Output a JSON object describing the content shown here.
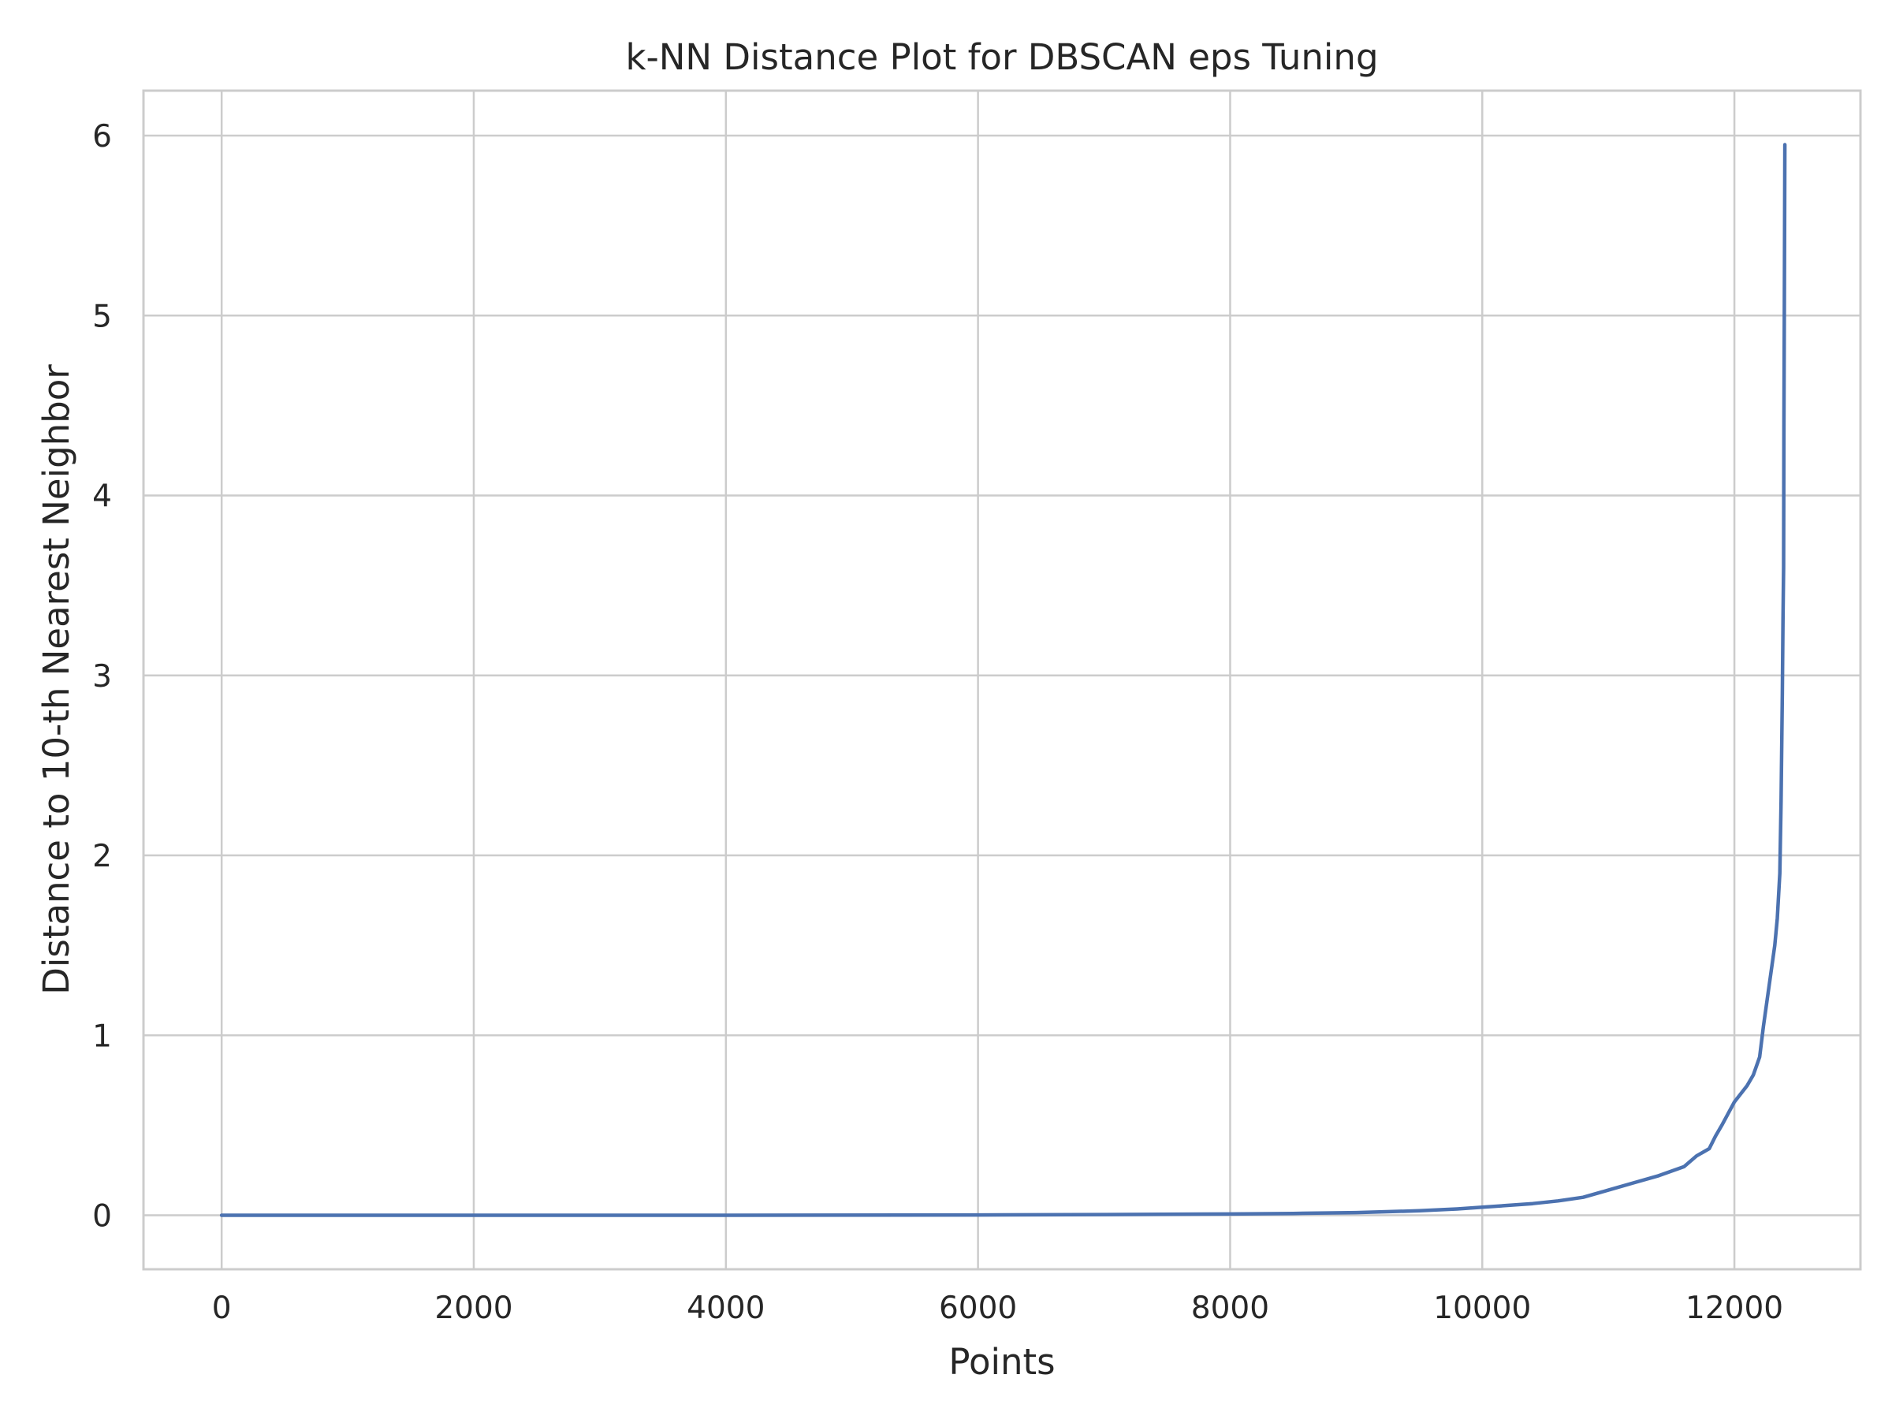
{
  "chart_data": {
    "type": "line",
    "title": "k-NN Distance Plot for DBSCAN eps Tuning",
    "xlabel": "Points",
    "ylabel": "Distance to 10-th Nearest Neighbor",
    "xlim": [
      -620,
      13000
    ],
    "ylim": [
      -0.3,
      6.25
    ],
    "x_ticks": [
      0,
      2000,
      4000,
      6000,
      8000,
      10000,
      12000
    ],
    "x_tick_labels": [
      "0",
      "2000",
      "4000",
      "6000",
      "8000",
      "10000",
      "12000"
    ],
    "y_ticks": [
      0,
      1,
      2,
      3,
      4,
      5,
      6
    ],
    "y_tick_labels": [
      "0",
      "1",
      "2",
      "3",
      "4",
      "5",
      "6"
    ],
    "grid": true,
    "series": [
      {
        "color": "#4c72b0",
        "x": [
          0,
          2000,
          4000,
          6000,
          7000,
          8000,
          8500,
          9000,
          9500,
          9800,
          10000,
          10200,
          10400,
          10600,
          10800,
          11000,
          11200,
          11400,
          11600,
          11700,
          11800,
          11850,
          11900,
          12000,
          12100,
          12150,
          12200,
          12230,
          12260,
          12290,
          12320,
          12340,
          12360,
          12370,
          12380,
          12385,
          12390,
          12393,
          12396,
          12400
        ],
        "y": [
          0.0,
          0.0,
          0.0,
          0.002,
          0.004,
          0.007,
          0.01,
          0.015,
          0.025,
          0.035,
          0.045,
          0.055,
          0.065,
          0.08,
          0.1,
          0.14,
          0.18,
          0.22,
          0.27,
          0.33,
          0.37,
          0.44,
          0.5,
          0.63,
          0.72,
          0.78,
          0.88,
          1.05,
          1.2,
          1.35,
          1.5,
          1.65,
          1.9,
          2.3,
          2.9,
          3.3,
          3.6,
          4.4,
          5.0,
          5.95
        ]
      }
    ]
  },
  "colors": {
    "background": "#ffffff",
    "grid": "#cccccc",
    "spine": "#cccccc",
    "line": "#4c72b0",
    "text": "#262626"
  }
}
